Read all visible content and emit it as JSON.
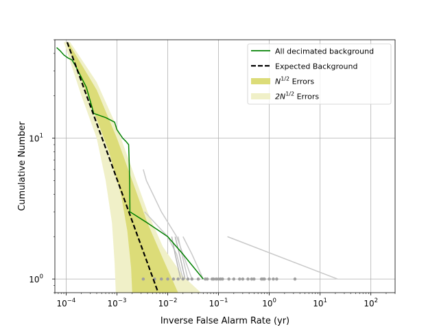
{
  "chart_data": {
    "type": "line",
    "title": "",
    "xlabel": "Inverse False Alarm Rate (yr)",
    "ylabel": "Cumulative Number",
    "x_scale": "log",
    "y_scale": "log",
    "xlim": [
      6e-05,
      300
    ],
    "ylim": [
      0.8,
      50
    ],
    "grid": true,
    "legend_position": "top-right",
    "x_ticks": [
      {
        "value": 0.0001,
        "base": "10",
        "exp": "−4"
      },
      {
        "value": 0.001,
        "base": "10",
        "exp": "−3"
      },
      {
        "value": 0.01,
        "base": "10",
        "exp": "−2"
      },
      {
        "value": 0.1,
        "base": "10",
        "exp": "−1"
      },
      {
        "value": 1,
        "base": "10",
        "exp": "0"
      },
      {
        "value": 10,
        "base": "10",
        "exp": "1"
      },
      {
        "value": 100,
        "base": "10",
        "exp": "2"
      }
    ],
    "y_ticks": [
      {
        "value": 1,
        "base": "10",
        "exp": "0"
      },
      {
        "value": 10,
        "base": "10",
        "exp": "1"
      }
    ],
    "legend": [
      {
        "key": "background",
        "label": "All decimated background",
        "sup": "",
        "suffix": "",
        "style": "line",
        "color": "#008000"
      },
      {
        "key": "expected",
        "label": "Expected Background",
        "sup": "",
        "suffix": "",
        "style": "dashed",
        "color": "#000000"
      },
      {
        "key": "band1",
        "label": "N",
        "sup": "1/2",
        "suffix": " Errors",
        "style": "patch",
        "color": "#dcdc78"
      },
      {
        "key": "band2",
        "label": "2N",
        "sup": "1/2",
        "suffix": " Errors",
        "style": "patch",
        "color": "#f0f0c8"
      }
    ],
    "expected_background": {
      "color": "#000000",
      "points": [
        [
          0.000105,
          48
        ],
        [
          0.0065,
          0.8
        ]
      ]
    },
    "band_2sigma": {
      "color": "#f0f0c8",
      "upper": [
        [
          0.00012,
          48
        ],
        [
          0.0004,
          25
        ],
        [
          0.001,
          12
        ],
        [
          0.002,
          6
        ],
        [
          0.004,
          3
        ],
        [
          0.008,
          1.7
        ],
        [
          0.02,
          1.05
        ],
        [
          0.045,
          0.8
        ]
      ],
      "lower": [
        [
          9e-05,
          48
        ],
        [
          0.0002,
          20
        ],
        [
          0.0004,
          10
        ],
        [
          0.0006,
          5
        ],
        [
          0.0008,
          2.5
        ],
        [
          0.0009,
          1.3
        ],
        [
          0.00095,
          0.8
        ]
      ]
    },
    "band_1sigma": {
      "color": "#dcdc78",
      "upper": [
        [
          0.00011,
          48
        ],
        [
          0.0004,
          22
        ],
        [
          0.001,
          10
        ],
        [
          0.002,
          5
        ],
        [
          0.004,
          2.5
        ],
        [
          0.008,
          1.4
        ],
        [
          0.016,
          0.8
        ]
      ],
      "lower": [
        [
          0.0001,
          48
        ],
        [
          0.0003,
          18
        ],
        [
          0.0007,
          8
        ],
        [
          0.0012,
          4
        ],
        [
          0.0016,
          2.2
        ],
        [
          0.0019,
          1.2
        ],
        [
          0.002,
          0.8
        ]
      ]
    },
    "background_series": {
      "name": "All decimated background",
      "color": "#008000",
      "points": [
        [
          6.5e-05,
          44
        ],
        [
          7.5e-05,
          42
        ],
        [
          9e-05,
          39
        ],
        [
          0.00011,
          37
        ],
        [
          0.00013,
          36
        ],
        [
          0.00015,
          33
        ],
        [
          0.00025,
          23
        ],
        [
          0.00035,
          15
        ],
        [
          0.0006,
          14
        ],
        [
          0.0009,
          13
        ],
        [
          0.001,
          11.5
        ],
        [
          0.0013,
          10
        ],
        [
          0.0015,
          9.5
        ],
        [
          0.0017,
          9
        ],
        [
          0.00175,
          6.5
        ],
        [
          0.00178,
          5
        ],
        [
          0.0018,
          3.2
        ],
        [
          0.0018,
          3
        ],
        [
          0.004,
          2.5
        ],
        [
          0.01,
          2
        ],
        [
          0.02,
          1.5
        ],
        [
          0.05,
          1
        ]
      ]
    },
    "gray_traces": [
      {
        "color": "#c8c8c8",
        "points": [
          [
            0.0033,
            6
          ],
          [
            0.0038,
            5
          ],
          [
            0.0075,
            3
          ],
          [
            0.015,
            2
          ],
          [
            0.02,
            1.5
          ],
          [
            0.03,
            1
          ]
        ]
      },
      {
        "color": "#c8c8c8",
        "points": [
          [
            0.0035,
            3
          ],
          [
            0.01,
            2
          ],
          [
            0.015,
            1.5
          ],
          [
            0.02,
            1
          ]
        ]
      },
      {
        "color": "#b4b4b4",
        "points": [
          [
            0.012,
            2
          ],
          [
            0.014,
            1.5
          ],
          [
            0.018,
            1
          ]
        ]
      },
      {
        "color": "#b4b4b4",
        "points": [
          [
            0.014,
            2
          ],
          [
            0.017,
            1.5
          ],
          [
            0.022,
            1
          ]
        ]
      },
      {
        "color": "#c8c8c8",
        "points": [
          [
            0.016,
            2
          ],
          [
            0.019,
            1.5
          ],
          [
            0.025,
            1
          ]
        ]
      },
      {
        "color": "#c8c8c8",
        "points": [
          [
            0.02,
            2
          ],
          [
            0.03,
            1.5
          ],
          [
            0.05,
            1
          ]
        ]
      },
      {
        "color": "#c8c8c8",
        "points": [
          [
            0.15,
            2
          ],
          [
            22,
            1
          ]
        ]
      }
    ],
    "gray_points": {
      "color": "#a0a0a0",
      "y": 1,
      "x": [
        0.0033,
        0.0055,
        0.0075,
        0.01,
        0.013,
        0.016,
        0.02,
        0.025,
        0.03,
        0.04,
        0.055,
        0.06,
        0.075,
        0.08,
        0.09,
        0.1,
        0.11,
        0.12,
        0.16,
        0.2,
        0.26,
        0.3,
        0.38,
        0.45,
        0.5,
        0.7,
        0.75,
        0.8,
        1.0,
        1.2,
        1.4,
        3.2
      ]
    }
  }
}
